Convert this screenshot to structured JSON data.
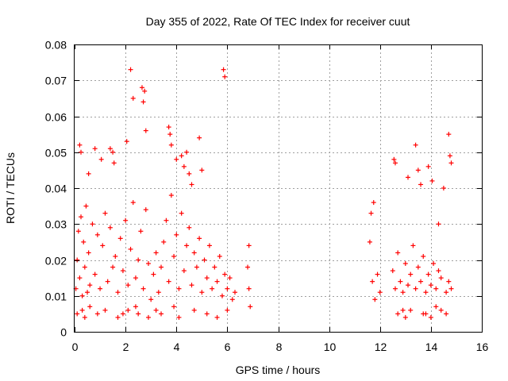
{
  "chart_data": {
    "type": "scatter",
    "title": "Day 355 of 2022, Rate Of TEC Index for receiver cuut",
    "xlabel": "GPS time / hours",
    "ylabel": "ROTI / TECUs",
    "xlim": [
      0,
      16
    ],
    "ylim": [
      0,
      0.08
    ],
    "xticks": [
      "0",
      "2",
      "4",
      "6",
      "8",
      "10",
      "12",
      "14",
      "16"
    ],
    "yticks": [
      "0",
      "0.01",
      "0.02",
      "0.03",
      "0.04",
      "0.05",
      "0.06",
      "0.07",
      "0.08"
    ],
    "grid": true,
    "marker": "+",
    "color": "#ff0000",
    "series": [
      {
        "x": [
          0.05,
          0.1,
          0.15,
          0.2,
          0.25,
          0.3,
          0.35,
          0.4,
          0.45,
          0.5,
          0.55,
          0.6,
          0.7,
          0.8,
          0.9,
          1.0,
          1.1,
          1.2,
          1.3,
          1.4,
          1.5,
          1.6,
          1.7,
          1.8,
          1.9,
          2.0,
          2.1,
          2.2,
          2.3,
          2.4,
          2.5,
          2.6,
          2.7,
          2.8,
          2.9,
          3.0,
          3.1,
          3.2,
          3.3,
          3.4,
          3.5,
          3.6,
          3.7,
          3.8,
          3.9,
          4.0,
          4.1,
          4.2,
          4.3,
          4.4,
          4.5,
          4.6,
          4.7,
          4.8,
          4.9,
          5.0,
          5.1,
          5.2,
          5.3,
          5.4,
          5.5,
          5.6,
          5.7,
          5.8,
          5.9,
          6.0,
          6.1,
          6.2,
          6.3,
          6.8,
          6.85,
          6.9,
          11.6,
          11.7,
          11.8,
          11.9,
          12.0,
          12.5,
          12.6,
          12.7,
          12.8,
          12.9,
          13.0,
          13.1,
          13.2,
          13.3,
          13.4,
          13.5,
          13.6,
          13.7,
          13.8,
          13.9,
          14.0,
          14.1,
          14.2,
          14.3,
          14.4,
          14.6,
          14.7,
          14.8,
          0.2,
          0.25,
          0.55,
          0.8,
          1.05,
          1.4,
          1.5,
          1.55,
          2.05,
          2.2,
          2.3,
          2.65,
          2.7,
          2.75,
          2.8,
          3.7,
          3.75,
          3.8,
          4.0,
          4.2,
          4.3,
          4.4,
          4.5,
          4.6,
          4.9,
          5.0,
          5.85,
          5.9,
          6.85,
          11.65,
          11.75,
          12.55,
          12.6,
          13.1,
          13.4,
          13.5,
          13.6,
          13.9,
          14.05,
          14.3,
          14.5,
          14.7,
          14.75,
          14.8,
          0.1,
          0.3,
          0.4,
          0.6,
          0.9,
          1.2,
          1.7,
          1.9,
          2.1,
          2.4,
          2.5,
          2.9,
          3.2,
          3.4,
          3.9,
          4.1,
          4.7,
          5.2,
          5.6,
          6.0,
          12.7,
          13.0,
          13.2,
          13.7,
          14.0,
          14.4,
          14.6,
          14.2,
          13.8,
          12.9
        ],
        "y": [
          0.012,
          0.02,
          0.028,
          0.015,
          0.032,
          0.01,
          0.025,
          0.018,
          0.035,
          0.011,
          0.022,
          0.013,
          0.03,
          0.016,
          0.027,
          0.012,
          0.024,
          0.033,
          0.014,
          0.029,
          0.018,
          0.021,
          0.011,
          0.026,
          0.017,
          0.031,
          0.013,
          0.023,
          0.036,
          0.015,
          0.02,
          0.028,
          0.012,
          0.034,
          0.019,
          0.009,
          0.016,
          0.022,
          0.011,
          0.018,
          0.025,
          0.031,
          0.014,
          0.038,
          0.021,
          0.027,
          0.012,
          0.033,
          0.017,
          0.024,
          0.029,
          0.013,
          0.022,
          0.018,
          0.026,
          0.011,
          0.02,
          0.015,
          0.024,
          0.012,
          0.018,
          0.014,
          0.021,
          0.01,
          0.016,
          0.012,
          0.015,
          0.009,
          0.011,
          0.018,
          0.012,
          0.007,
          0.025,
          0.014,
          0.009,
          0.016,
          0.011,
          0.017,
          0.012,
          0.022,
          0.014,
          0.011,
          0.019,
          0.013,
          0.016,
          0.024,
          0.012,
          0.018,
          0.014,
          0.021,
          0.011,
          0.016,
          0.013,
          0.019,
          0.012,
          0.017,
          0.015,
          0.011,
          0.014,
          0.012,
          0.052,
          0.05,
          0.044,
          0.051,
          0.048,
          0.051,
          0.05,
          0.047,
          0.053,
          0.073,
          0.065,
          0.068,
          0.064,
          0.067,
          0.056,
          0.057,
          0.055,
          0.052,
          0.048,
          0.049,
          0.046,
          0.05,
          0.044,
          0.041,
          0.054,
          0.045,
          0.073,
          0.071,
          0.024,
          0.033,
          0.036,
          0.048,
          0.047,
          0.043,
          0.052,
          0.045,
          0.041,
          0.046,
          0.042,
          0.03,
          0.04,
          0.055,
          0.049,
          0.047,
          0.005,
          0.006,
          0.004,
          0.007,
          0.005,
          0.006,
          0.004,
          0.005,
          0.006,
          0.007,
          0.005,
          0.004,
          0.006,
          0.005,
          0.007,
          0.004,
          0.006,
          0.005,
          0.004,
          0.006,
          0.005,
          0.004,
          0.006,
          0.005,
          0.004,
          0.006,
          0.005,
          0.007,
          0.005,
          0.006
        ]
      }
    ]
  }
}
